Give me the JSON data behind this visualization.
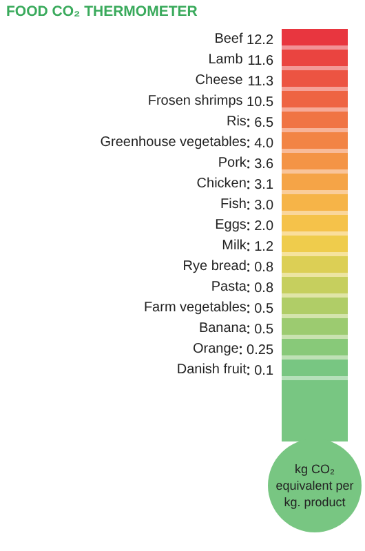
{
  "chart_data": {
    "type": "other",
    "title": "FOOD CO₂ THERMOMETER",
    "categories": [
      "Beef",
      "Lamb",
      "Cheese",
      "Frosen shrimps",
      "Ris",
      "Greenhouse vegetables",
      "Pork",
      "Chicken",
      "Fish",
      "Eggs",
      "Milk",
      "Rye bread",
      "Pasta",
      "Farm vegetables",
      "Banana",
      "Orange",
      "Danish fruit"
    ],
    "values": [
      12.2,
      11.6,
      11.3,
      10.5,
      6.5,
      4.0,
      3.6,
      3.1,
      3.0,
      2.0,
      1.2,
      0.8,
      0.8,
      0.5,
      0.5,
      0.25,
      0.1
    ],
    "value_labels": [
      "12.2",
      "11.6",
      "11.3",
      "10.5",
      "6.5",
      "4.0",
      "3.6",
      "3.1",
      "3.0",
      "2.0",
      "1.2",
      "0.8",
      "0.8",
      "0.5",
      "0.5",
      "0.25",
      "0.1"
    ],
    "colors": [
      "#e8363f",
      "#ea4440",
      "#ec5442",
      "#ee6443",
      "#f07444",
      "#f28445",
      "#f49446",
      "#f5a447",
      "#f6b448",
      "#f5c24a",
      "#efcc4c",
      "#dccf55",
      "#c6cf5e",
      "#b0cd67",
      "#9ccb70",
      "#88c979",
      "#78c682"
    ],
    "annotations": [
      "kg CO₂\nequivalent per\nkg. product"
    ]
  }
}
